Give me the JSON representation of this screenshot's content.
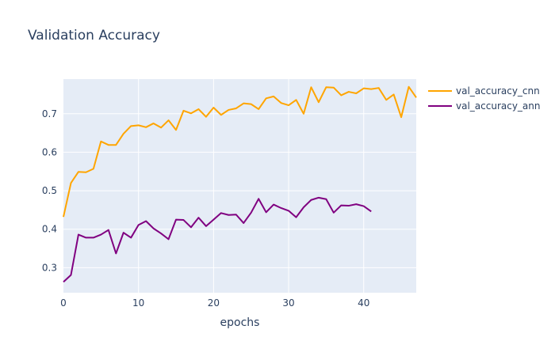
{
  "chart_data": {
    "type": "line",
    "title": "Validation Accuracy",
    "xlabel": "epochs",
    "ylabel": "",
    "xlim": [
      0,
      47
    ],
    "ylim": [
      0.235,
      0.79
    ],
    "xticks": [
      0,
      10,
      20,
      30,
      40
    ],
    "yticks": [
      0.3,
      0.4,
      0.5,
      0.6,
      0.7
    ],
    "ytick_labels": [
      "0.3",
      "0.4",
      "0.5",
      "0.6",
      "0.7"
    ],
    "grid": true,
    "legend_position": "top-right",
    "series": [
      {
        "name": "val_accuracy_cnn",
        "color": "#FFA500",
        "values": [
          0.432,
          0.52,
          0.549,
          0.548,
          0.557,
          0.628,
          0.619,
          0.619,
          0.648,
          0.668,
          0.67,
          0.665,
          0.675,
          0.664,
          0.683,
          0.658,
          0.708,
          0.701,
          0.712,
          0.692,
          0.716,
          0.697,
          0.71,
          0.714,
          0.727,
          0.725,
          0.712,
          0.74,
          0.745,
          0.728,
          0.722,
          0.736,
          0.7,
          0.769,
          0.73,
          0.769,
          0.768,
          0.748,
          0.757,
          0.753,
          0.766,
          0.764,
          0.767,
          0.736,
          0.75,
          0.691,
          0.77,
          0.742
        ]
      },
      {
        "name": "val_accuracy_ann",
        "color": "#800080",
        "values": [
          0.263,
          0.281,
          0.386,
          0.378,
          0.378,
          0.386,
          0.398,
          0.337,
          0.391,
          0.378,
          0.411,
          0.421,
          0.402,
          0.389,
          0.374,
          0.425,
          0.424,
          0.405,
          0.43,
          0.408,
          0.425,
          0.442,
          0.437,
          0.438,
          0.416,
          0.443,
          0.479,
          0.444,
          0.464,
          0.455,
          0.448,
          0.431,
          0.457,
          0.476,
          0.482,
          0.478,
          0.443,
          0.462,
          0.461,
          0.465,
          0.46,
          0.446
        ]
      }
    ]
  }
}
